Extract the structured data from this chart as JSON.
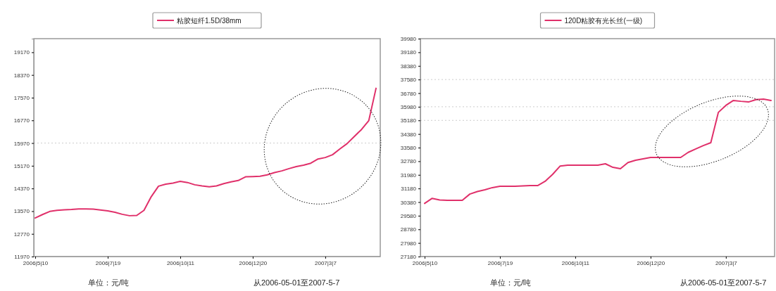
{
  "chart_data": [
    {
      "type": "line",
      "categories": [
        "2006|5|10",
        null,
        null,
        null,
        null,
        null,
        null,
        null,
        null,
        null,
        "2006|7|19",
        null,
        null,
        null,
        null,
        null,
        null,
        null,
        null,
        null,
        "2006|10|11",
        null,
        null,
        null,
        null,
        null,
        null,
        null,
        null,
        null,
        "2006|12|20",
        null,
        null,
        null,
        null,
        null,
        null,
        null,
        null,
        null,
        "2007|3|7",
        null,
        null,
        null,
        null,
        null,
        null,
        null
      ],
      "series": [
        {
          "name": "粘胶短纤1.5D/38mm",
          "color": "#e0306a",
          "values": [
            13330,
            13450,
            13560,
            13600,
            13620,
            13630,
            13650,
            13650,
            13640,
            13610,
            13580,
            13530,
            13460,
            13410,
            13420,
            13600,
            14080,
            14450,
            14520,
            14560,
            14620,
            14580,
            14500,
            14460,
            14430,
            14460,
            14540,
            14600,
            14650,
            14780,
            14790,
            14800,
            14850,
            14930,
            14990,
            15070,
            15140,
            15190,
            15260,
            15410,
            15460,
            15560,
            15760,
            15950,
            16200,
            16450,
            16760,
            17900
          ]
        }
      ],
      "ylim": [
        11970,
        19650
      ],
      "yticks": [
        11970,
        12770,
        13570,
        14370,
        15170,
        15970,
        16770,
        17570,
        18370,
        19170
      ],
      "ref_lines": [
        {
          "axis": "y",
          "value": 15970,
          "color": "#cccccc",
          "line_style": "dotted"
        }
      ],
      "legend": "top",
      "marker": "none",
      "line_style": "solid",
      "annotations": [
        "单位：元/吨",
        "从2006-05-01至2007-5-7"
      ]
    },
    {
      "type": "line",
      "categories": [
        "2006|5|10",
        null,
        null,
        null,
        null,
        null,
        null,
        null,
        null,
        null,
        "2006|7|19",
        null,
        null,
        null,
        null,
        null,
        null,
        null,
        null,
        null,
        "2006|10|11",
        null,
        null,
        null,
        null,
        null,
        null,
        null,
        null,
        null,
        "2006|12|20",
        null,
        null,
        null,
        null,
        null,
        null,
        null,
        null,
        null,
        "2007|3|7",
        null,
        null,
        null,
        null,
        null,
        null
      ],
      "series": [
        {
          "name": "120D粘胶有光长丝(一级)",
          "color": "#e0306a",
          "values": [
            30300,
            30600,
            30500,
            30480,
            30480,
            30480,
            30850,
            31000,
            31100,
            31230,
            31310,
            31310,
            31310,
            31330,
            31350,
            31350,
            31600,
            32010,
            32500,
            32550,
            32550,
            32550,
            32550,
            32550,
            32630,
            32420,
            32340,
            32700,
            32840,
            32920,
            33000,
            33000,
            33000,
            33000,
            33000,
            33300,
            33500,
            33700,
            33870,
            35650,
            36060,
            36350,
            36300,
            36260,
            36400,
            36430,
            36350
          ]
        }
      ],
      "ylim": [
        27180,
        39980
      ],
      "yticks": [
        27180,
        27980,
        28780,
        29580,
        30380,
        31180,
        31980,
        32780,
        33580,
        34380,
        35180,
        35980,
        36780,
        37580,
        38380,
        39180,
        39980
      ],
      "ref_lines": [
        {
          "axis": "y",
          "value": 37580,
          "color": "#cccccc",
          "line_style": "dotted"
        },
        {
          "axis": "y",
          "value": 35980,
          "color": "#cccccc",
          "line_style": "dotted"
        },
        {
          "axis": "y",
          "value": 35180,
          "color": "#cccccc",
          "line_style": "dotted"
        }
      ],
      "legend": "top",
      "marker": "none",
      "line_style": "solid",
      "annotations": [
        "单位：元/吨",
        "从2006-05-01至2007-5-7"
      ]
    }
  ]
}
